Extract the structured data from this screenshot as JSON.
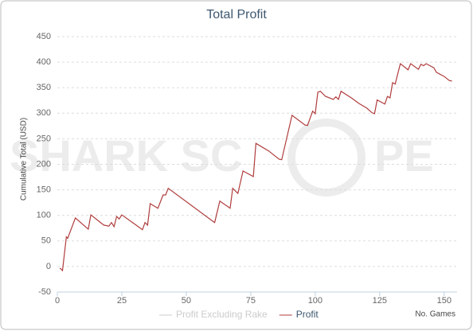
{
  "chart_data": {
    "type": "line",
    "title": "Total Profit",
    "y_label": "Cumulative Total (USD)",
    "x_label": "No. Games",
    "watermark_left": "SHARK SC",
    "watermark_right": "PE",
    "x": [
      1,
      2,
      3,
      3.5,
      4,
      7,
      12,
      13,
      18,
      20,
      21,
      22,
      23,
      24,
      25,
      30,
      33,
      34,
      35,
      36,
      39,
      41,
      42,
      43,
      61,
      63,
      67,
      68,
      70,
      72,
      76,
      77,
      82,
      86,
      87,
      91,
      96,
      97,
      99,
      100,
      101,
      102,
      104,
      107,
      108,
      109,
      110,
      114,
      117,
      120,
      122,
      123,
      124,
      127,
      128,
      129,
      130,
      131,
      133,
      136,
      137,
      140,
      141,
      142,
      143,
      146,
      147,
      150,
      152,
      153
    ],
    "series": [
      {
        "name": "Profit",
        "color": "#b03c3c",
        "values": [
          -3,
          -8,
          36,
          58,
          55,
          95,
          73,
          101,
          81,
          79,
          86,
          78,
          98,
          93,
          101,
          83,
          72,
          86,
          81,
          123,
          114,
          140,
          140,
          153,
          86,
          128,
          114,
          153,
          143,
          187,
          176,
          241,
          226,
          210,
          209,
          296,
          277,
          276,
          304,
          299,
          341,
          343,
          333,
          327,
          332,
          327,
          343,
          330,
          319,
          310,
          301,
          299,
          326,
          318,
          333,
          330,
          360,
          357,
          397,
          385,
          397,
          386,
          396,
          393,
          397,
          389,
          380,
          372,
          364,
          363
        ]
      }
    ],
    "hidden_series": [
      {
        "name": "Profit Excluding Rake",
        "color": "#cccccc"
      }
    ],
    "xlim": [
      0,
      155
    ],
    "xticks": [
      0,
      25,
      50,
      75,
      100,
      125,
      150
    ],
    "ylim": [
      -50,
      450
    ],
    "yticks": [
      -50,
      0,
      50,
      100,
      150,
      200,
      250,
      300,
      350,
      400,
      450
    ],
    "grid": true
  }
}
